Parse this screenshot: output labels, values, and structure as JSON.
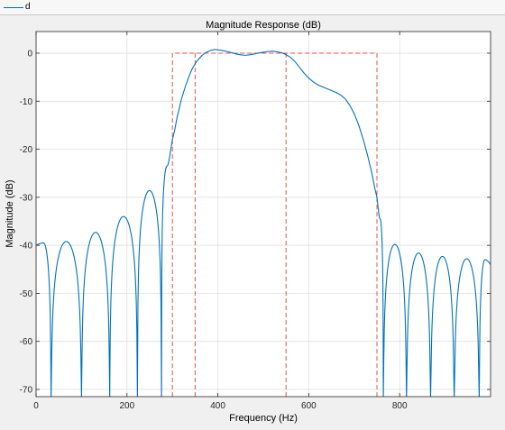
{
  "legend": {
    "entries": [
      {
        "label": "d",
        "color": "#0072bd"
      }
    ]
  },
  "chart_data": {
    "type": "line",
    "title": "Magnitude Response (dB)",
    "xlabel": "Frequency (Hz)",
    "ylabel": "Magnitude (dB)",
    "xlim": [
      0,
      1000
    ],
    "ylim": [
      -71.5,
      4.5
    ],
    "xticks": [
      0,
      200,
      400,
      600,
      800
    ],
    "yticks": [
      0,
      -10,
      -20,
      -30,
      -40,
      -50,
      -60,
      -70
    ],
    "grid": true,
    "series": [
      {
        "name": "d",
        "color": "#0072bd",
        "passband": [
          [
            300,
            -18
          ],
          [
            305,
            -16
          ],
          [
            310,
            -13.5
          ],
          [
            315,
            -11.5
          ],
          [
            320,
            -9.5
          ],
          [
            325,
            -8
          ],
          [
            330,
            -6.5
          ],
          [
            335,
            -5.2
          ],
          [
            340,
            -4
          ],
          [
            345,
            -3
          ],
          [
            350,
            -2.2
          ],
          [
            355,
            -1.5
          ],
          [
            360,
            -1
          ],
          [
            365,
            -0.5
          ],
          [
            370,
            -0.1
          ],
          [
            375,
            0.2
          ],
          [
            380,
            0.4
          ],
          [
            385,
            0.6
          ],
          [
            390,
            0.7
          ],
          [
            395,
            0.75
          ],
          [
            400,
            0.7
          ],
          [
            410,
            0.55
          ],
          [
            420,
            0.35
          ],
          [
            430,
            0.1
          ],
          [
            440,
            -0.15
          ],
          [
            450,
            -0.35
          ],
          [
            460,
            -0.45
          ],
          [
            470,
            -0.35
          ],
          [
            480,
            -0.15
          ],
          [
            490,
            0.05
          ],
          [
            500,
            0.2
          ],
          [
            510,
            0.35
          ],
          [
            520,
            0.4
          ],
          [
            530,
            0.3
          ],
          [
            540,
            0.1
          ],
          [
            550,
            -0.3
          ],
          [
            560,
            -0.9
          ],
          [
            570,
            -1.8
          ],
          [
            580,
            -3
          ],
          [
            590,
            -4.2
          ],
          [
            600,
            -5.2
          ],
          [
            610,
            -6
          ],
          [
            620,
            -6.6
          ],
          [
            630,
            -7
          ],
          [
            640,
            -7.4
          ],
          [
            650,
            -7.8
          ],
          [
            660,
            -8.2
          ],
          [
            670,
            -8.7
          ],
          [
            680,
            -9.5
          ],
          [
            690,
            -10.8
          ],
          [
            700,
            -12.6
          ],
          [
            710,
            -15
          ],
          [
            720,
            -18
          ],
          [
            730,
            -21.5
          ],
          [
            740,
            -25.5
          ],
          [
            745,
            -28
          ],
          [
            750,
            -30
          ]
        ],
        "left_lobes": [
          {
            "start": 0,
            "end": 33,
            "peak": -39.5,
            "start_db": -40
          },
          {
            "start": 33,
            "end": 100,
            "peak": -39.2
          },
          {
            "start": 100,
            "end": 162,
            "peak": -37.3
          },
          {
            "start": 162,
            "end": 223,
            "peak": -34.0
          },
          {
            "start": 223,
            "end": 276,
            "peak": -28.6
          },
          {
            "start": 276,
            "end": 300,
            "peak": -23.5,
            "end_db": -18
          }
        ],
        "right_lobes": [
          {
            "start": 750,
            "end": 764,
            "peak": -34.5,
            "start_db": -30
          },
          {
            "start": 764,
            "end": 815,
            "peak": -39.8
          },
          {
            "start": 815,
            "end": 868,
            "peak": -41.6
          },
          {
            "start": 868,
            "end": 920,
            "peak": -42.3
          },
          {
            "start": 920,
            "end": 975,
            "peak": -42.8
          },
          {
            "start": 975,
            "end": 1000,
            "peak": -43.0,
            "end_db": -44
          }
        ]
      }
    ],
    "mask": {
      "color": "#e8534a",
      "outer_rect": {
        "x0": 300,
        "x1": 750,
        "y_top": 0
      },
      "inner_edges": [
        350,
        550
      ]
    }
  }
}
